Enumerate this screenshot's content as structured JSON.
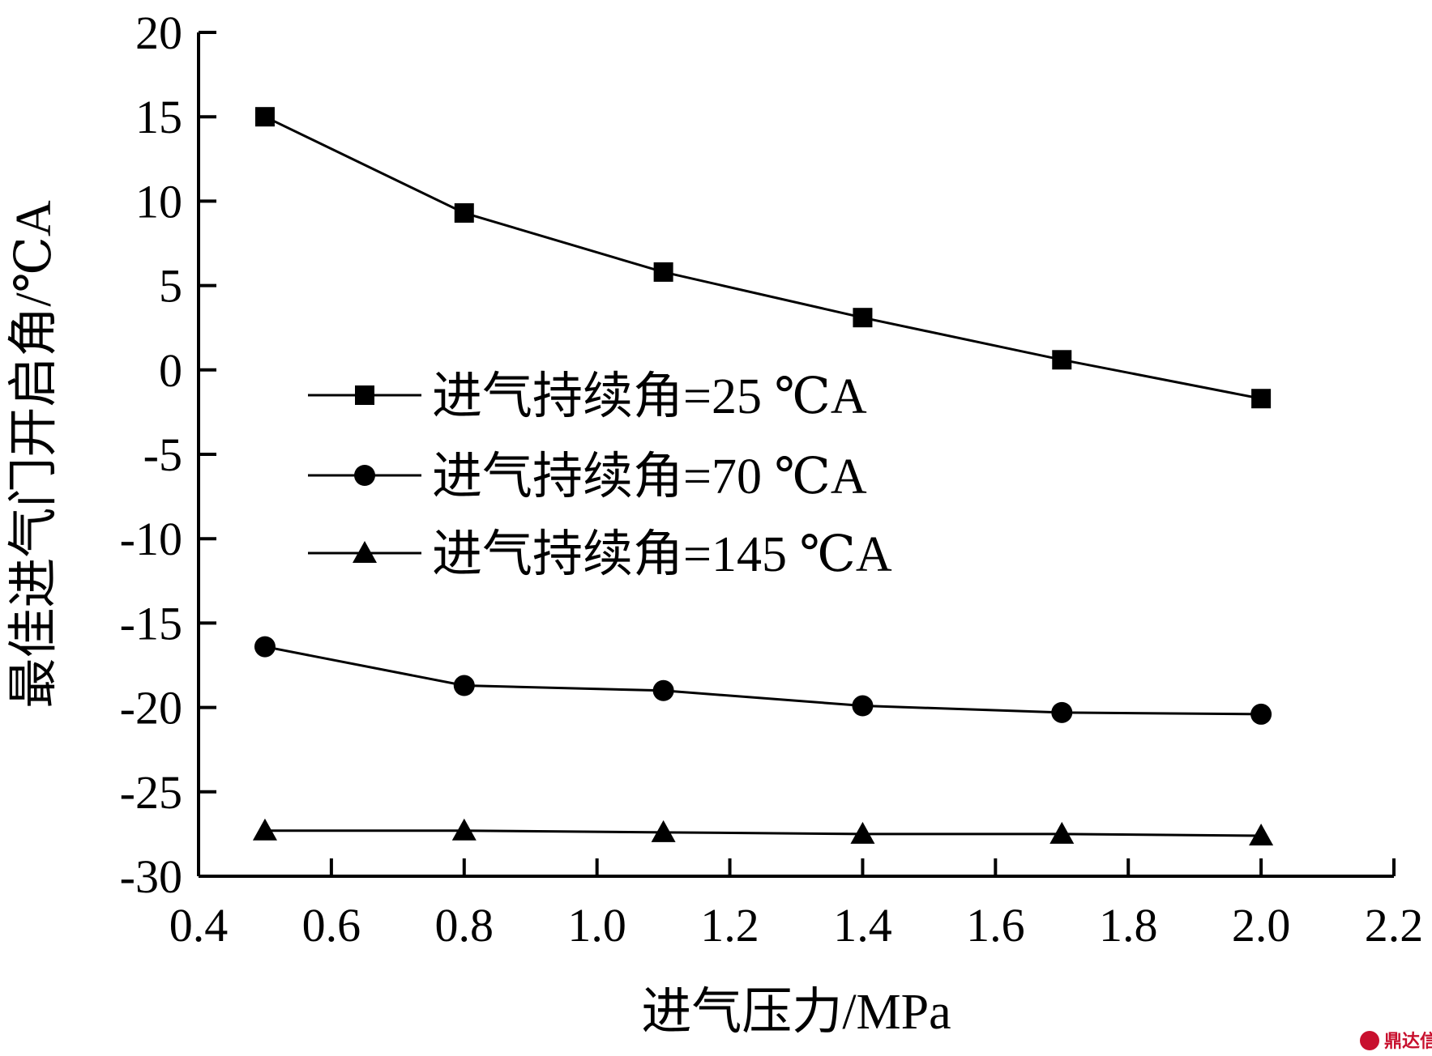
{
  "chart_data": {
    "type": "line",
    "title": "",
    "xlabel": "进气压力/MPa",
    "ylabel": "最佳进气门开启角/℃A",
    "xlim": [
      0.4,
      2.2
    ],
    "ylim": [
      -30,
      20
    ],
    "xticks": [
      0.4,
      0.6,
      0.8,
      1.0,
      1.2,
      1.4,
      1.6,
      1.8,
      2.0,
      2.2
    ],
    "xtick_labels": [
      "0.4",
      "0.6",
      "0.8",
      "1.0",
      "1.2",
      "1.4",
      "1.6",
      "1.8",
      "2.0",
      "2.2"
    ],
    "yticks": [
      20,
      15,
      10,
      5,
      0,
      -5,
      -10,
      -15,
      -20,
      -25,
      -30
    ],
    "ytick_labels": [
      "20",
      "15",
      "10",
      "5",
      "0",
      "-5",
      "-10",
      "-15",
      "-20",
      "-25",
      "-30"
    ],
    "x": [
      0.5,
      0.8,
      1.1,
      1.4,
      1.7,
      2.0
    ],
    "grid": false,
    "legend_position": "center-left",
    "series": [
      {
        "name": "进气持续角=25 ℃A",
        "marker": "square",
        "values": [
          15.0,
          9.3,
          5.8,
          3.1,
          0.6,
          -1.7
        ]
      },
      {
        "name": "进气持续角=70 ℃A",
        "marker": "circle",
        "values": [
          -16.4,
          -18.7,
          -19.0,
          -19.9,
          -20.3,
          -20.4
        ]
      },
      {
        "name": "进气持续角=145 ℃A",
        "marker": "triangle",
        "values": [
          -27.3,
          -27.3,
          -27.4,
          -27.5,
          -27.5,
          -27.6
        ]
      }
    ],
    "color": "#000000"
  },
  "watermark": {
    "text": "鼎达信",
    "color": "#c8102e"
  }
}
